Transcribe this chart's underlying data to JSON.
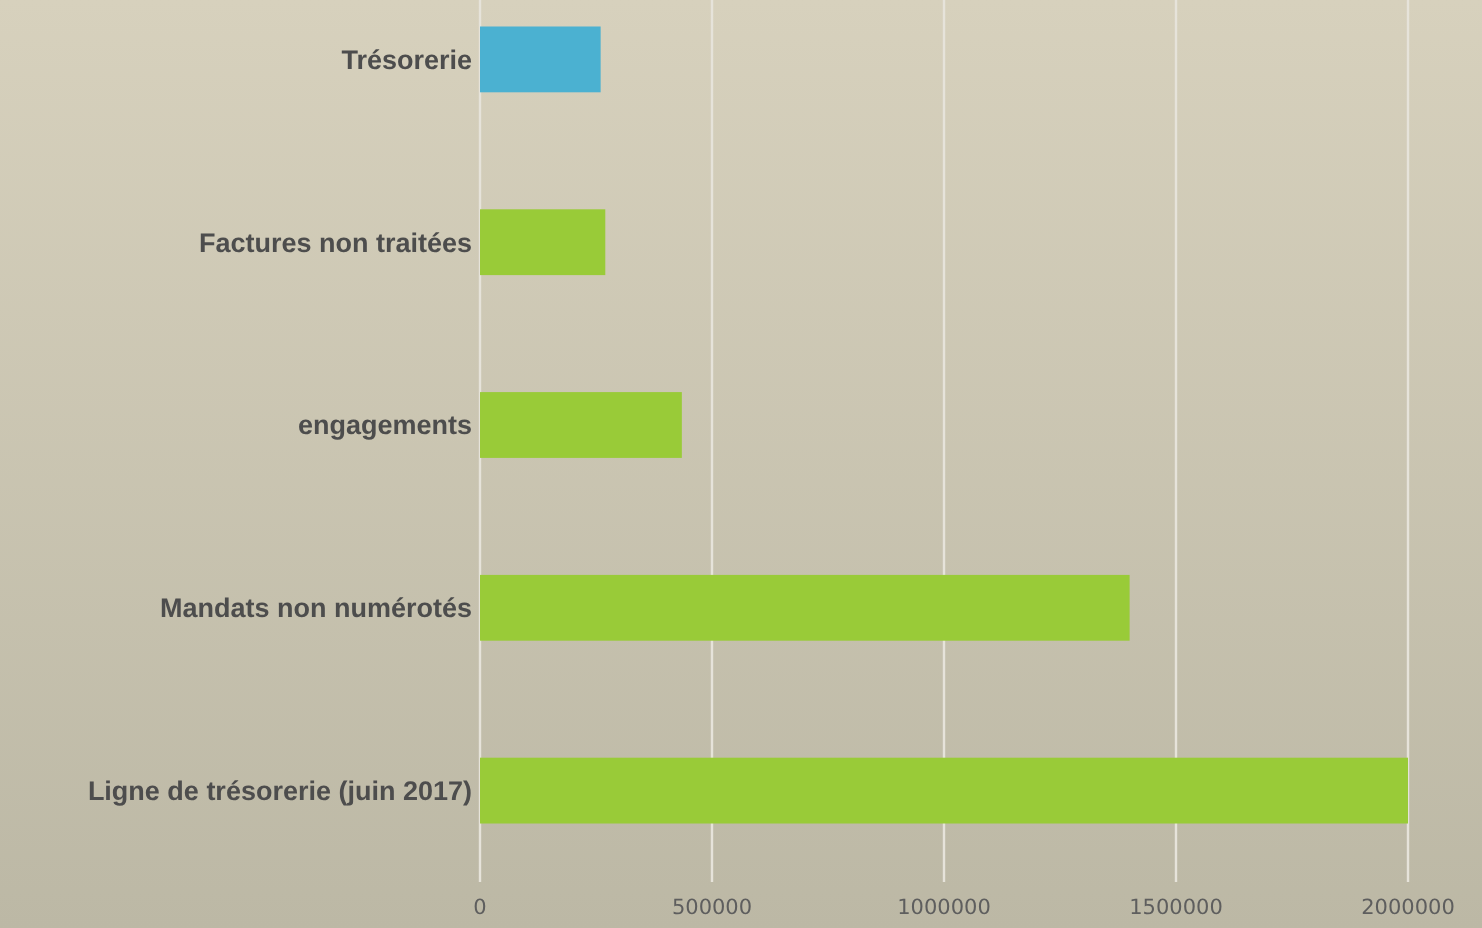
{
  "chart_data": {
    "type": "bar",
    "orientation": "horizontal",
    "categories": [
      "Trésorerie",
      "Factures non traitées",
      "engagements",
      "Mandats non numérotés",
      "Ligne de trésorerie (juin 2017)"
    ],
    "values": [
      260000,
      270000,
      435000,
      1400000,
      2000000
    ],
    "colors": [
      "#4bb1d1",
      "#99cb38",
      "#99cb38",
      "#99cb38",
      "#99cb38"
    ],
    "xlim": [
      0,
      2000000
    ],
    "xticks": [
      0,
      500000,
      1000000,
      1500000,
      2000000
    ],
    "grid": "x"
  }
}
